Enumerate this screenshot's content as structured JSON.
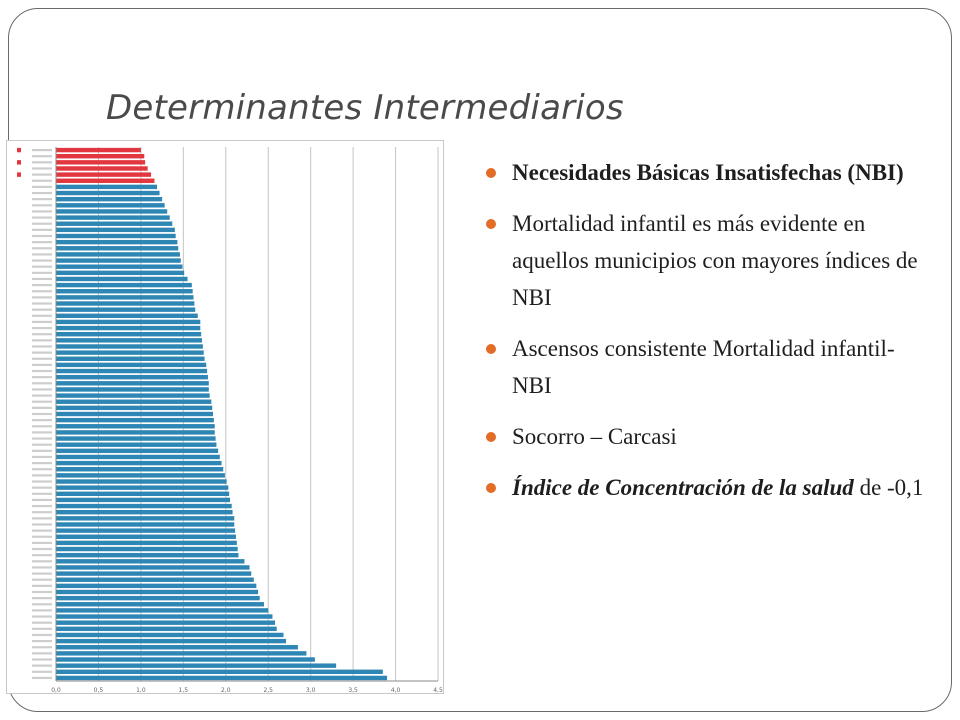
{
  "slide": {
    "title": "Determinantes Intermediarios",
    "accent_color": "#e36c26",
    "bullets": [
      {
        "text": "Necesidades Básicas Insatisfechas (NBI)"
      },
      {
        "text": "Mortalidad infantil es más evidente en aquellos municipios con mayores índices de NBI"
      },
      {
        "text": "Ascensos consistente Mortalidad infantil-NBI"
      },
      {
        "text": "Socorro – Carcasi"
      },
      {
        "emph": "Índice de Concentración de la salud",
        "rest": " de -0,1"
      }
    ]
  },
  "chart_data": {
    "type": "bar",
    "orientation": "horizontal",
    "xlim": [
      0,
      4.5
    ],
    "x_ticks": [
      "0,0",
      "0,5",
      "1,0",
      "1,5",
      "2,0",
      "2,5",
      "3,0",
      "3,5",
      "4,0",
      "4,5"
    ],
    "grid": true,
    "colors": {
      "normal": "#2e86b4",
      "highlight": "#e2373f"
    },
    "highlighted_count": 6,
    "values": [
      1.0,
      1.04,
      1.05,
      1.08,
      1.12,
      1.16,
      1.19,
      1.22,
      1.25,
      1.28,
      1.31,
      1.34,
      1.37,
      1.4,
      1.41,
      1.43,
      1.44,
      1.46,
      1.47,
      1.49,
      1.51,
      1.55,
      1.6,
      1.61,
      1.62,
      1.63,
      1.64,
      1.67,
      1.7,
      1.7,
      1.71,
      1.72,
      1.73,
      1.74,
      1.75,
      1.77,
      1.78,
      1.79,
      1.8,
      1.8,
      1.81,
      1.83,
      1.84,
      1.85,
      1.86,
      1.87,
      1.87,
      1.88,
      1.89,
      1.91,
      1.93,
      1.95,
      1.97,
      1.99,
      2.01,
      2.03,
      2.04,
      2.05,
      2.07,
      2.08,
      2.1,
      2.1,
      2.11,
      2.12,
      2.13,
      2.14,
      2.15,
      2.22,
      2.28,
      2.3,
      2.33,
      2.36,
      2.38,
      2.4,
      2.45,
      2.5,
      2.55,
      2.58,
      2.6,
      2.68,
      2.71,
      2.85,
      2.95,
      3.05,
      3.3,
      3.85,
      3.9
    ]
  }
}
